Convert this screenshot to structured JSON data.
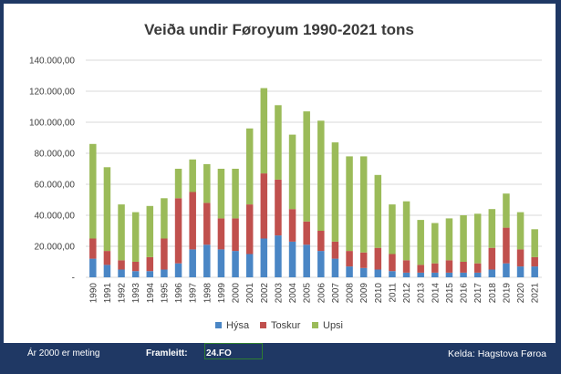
{
  "colors": {
    "background": "#1f3864",
    "Hýsa": "#4a86c5",
    "Toskur": "#c0504d",
    "Upsi": "#9bbb59",
    "grid": "#d9d9d9"
  },
  "footer": {
    "note": "Ár 2000 er meting",
    "made_label": "Framleitt:",
    "made_value": "24.FO",
    "source": "Kelda: Hagstova Føroa"
  },
  "chart_data": {
    "type": "bar",
    "stacked": true,
    "title": "Veiða undir Føroyum 1990-2021 tons",
    "xlabel": "",
    "ylabel": "",
    "ylim": [
      0,
      140000
    ],
    "yticks": [
      "-",
      "20.000,00",
      "40.000,00",
      "60.000,00",
      "80.000,00",
      "100.000,00",
      "120.000,00",
      "140.000,00"
    ],
    "grid": true,
    "legend_position": "bottom",
    "categories": [
      "1990",
      "1991",
      "1992",
      "1993",
      "1994",
      "1995",
      "1996",
      "1997",
      "1998",
      "1999",
      "2000",
      "2001",
      "2002",
      "2003",
      "2004",
      "2005",
      "2006",
      "2007",
      "2008",
      "2009",
      "2010",
      "2011",
      "2012",
      "2013",
      "2014",
      "2015",
      "2016",
      "2017",
      "2018",
      "2019",
      "2020",
      "2021"
    ],
    "series": [
      {
        "name": "Hýsa",
        "values": [
          12000,
          8000,
          5000,
          4000,
          4000,
          5000,
          9000,
          18000,
          21000,
          18000,
          17000,
          15000,
          25000,
          27000,
          23000,
          21000,
          17000,
          12000,
          7000,
          6000,
          5000,
          4000,
          3000,
          3000,
          3000,
          3000,
          3000,
          3000,
          5000,
          9000,
          7000,
          7000
        ]
      },
      {
        "name": "Toskur",
        "values": [
          13000,
          9000,
          6000,
          6000,
          9000,
          20000,
          42000,
          37000,
          27000,
          20000,
          21000,
          32000,
          42000,
          36000,
          21000,
          15000,
          13000,
          11000,
          10000,
          10000,
          14000,
          11000,
          8000,
          5000,
          6000,
          8000,
          7000,
          6000,
          14000,
          23000,
          11000,
          6000
        ]
      },
      {
        "name": "Upsi",
        "values": [
          61000,
          54000,
          36000,
          32000,
          33000,
          26000,
          19000,
          21000,
          25000,
          32000,
          32000,
          49000,
          55000,
          48000,
          48000,
          71000,
          71000,
          64000,
          61000,
          62000,
          47000,
          32000,
          38000,
          29000,
          26000,
          27000,
          30000,
          32000,
          25000,
          22000,
          24000,
          18000
        ]
      }
    ]
  }
}
